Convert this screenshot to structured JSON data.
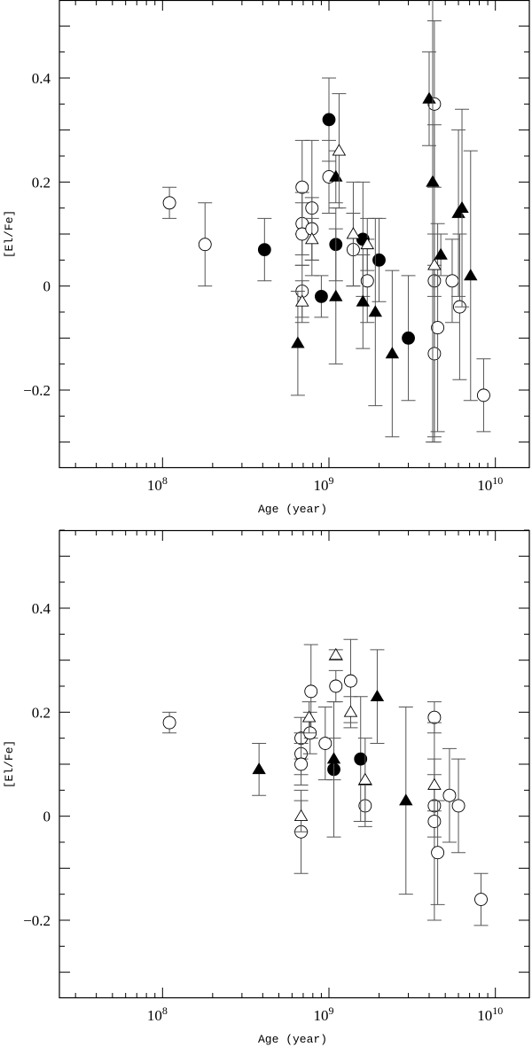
{
  "chart_data": [
    {
      "type": "scatter",
      "panel": "top",
      "xlabel": "Age (year)",
      "ylabel": "[El/Fe]",
      "xscale": "log",
      "xlim": [
        24000000.0,
        16000000000.0
      ],
      "ylim": [
        -0.35,
        0.55
      ],
      "xticks": [
        "10^8",
        "10^9",
        "10^10"
      ],
      "yticks": [
        -0.2,
        0,
        0.2,
        0.4
      ],
      "grid": false,
      "series": [
        {
          "marker": "open-circle",
          "points": [
            [
              110000000.0,
              0.16,
              0.03
            ],
            [
              180000000.0,
              0.08,
              0.08
            ],
            [
              690000000.0,
              0.19,
              0.09
            ],
            [
              690000000.0,
              0.12,
              0.06
            ],
            [
              690000000.0,
              0.1,
              0.06
            ],
            [
              690000000.0,
              -0.01,
              0.05
            ],
            [
              790000000.0,
              0.15,
              0.13
            ],
            [
              790000000.0,
              0.11,
              0.06
            ],
            [
              1000000000.0,
              0.21,
              0.07
            ],
            [
              1400000000.0,
              0.07,
              0.07
            ],
            [
              1700000000.0,
              0.01,
              0.08
            ],
            [
              4300000000.0,
              0.35,
              0.16
            ],
            [
              4300000000.0,
              0.01,
              0.3
            ],
            [
              4300000000.0,
              -0.13,
              0.17
            ],
            [
              4500000000.0,
              -0.08,
              0.2
            ],
            [
              5500000000.0,
              0.01,
              0.08
            ],
            [
              6100000000.0,
              -0.04,
              0.14
            ],
            [
              8500000000.0,
              -0.21,
              0.07
            ]
          ]
        },
        {
          "marker": "filled-circle",
          "points": [
            [
              410000000.0,
              0.07,
              0.06
            ],
            [
              900000000.0,
              -0.02,
              0.04
            ],
            [
              1000000000.0,
              0.32,
              0.08
            ],
            [
              1100000000.0,
              0.08,
              0.07
            ],
            [
              1600000000.0,
              0.09,
              0.11
            ],
            [
              2000000000.0,
              0.05,
              0.08
            ],
            [
              3000000000.0,
              -0.1,
              0.12
            ]
          ]
        },
        {
          "marker": "filled-triangle",
          "points": [
            [
              650000000.0,
              -0.11,
              0.1
            ],
            [
              1100000000.0,
              0.21,
              0.05
            ],
            [
              1100000000.0,
              -0.02,
              0.13
            ],
            [
              1600000000.0,
              -0.03,
              0.09
            ],
            [
              1900000000.0,
              -0.05,
              0.18
            ],
            [
              2400000000.0,
              -0.13,
              0.16
            ],
            [
              4000000000.0,
              0.36,
              0.09
            ],
            [
              4200000000.0,
              0.2,
              0.5
            ],
            [
              4700000000.0,
              0.06,
              0.04
            ],
            [
              6000000000.0,
              0.14,
              0.16
            ],
            [
              6300000000.0,
              0.15,
              0.19
            ],
            [
              7100000000.0,
              0.02,
              0.24
            ]
          ]
        },
        {
          "marker": "open-triangle",
          "points": [
            [
              690000000.0,
              -0.03,
              0.04
            ],
            [
              790000000.0,
              0.09,
              0.04
            ],
            [
              1150000000.0,
              0.26,
              0.11
            ],
            [
              1400000000.0,
              0.1,
              0.1
            ],
            [
              1700000000.0,
              0.08,
              0.05
            ],
            [
              4300000000.0,
              0.04,
              0.06
            ]
          ]
        }
      ]
    },
    {
      "type": "scatter",
      "panel": "bottom",
      "xlabel": "Age (year)",
      "ylabel": "[El/Fe]",
      "xscale": "log",
      "xlim": [
        24000000.0,
        16000000000.0
      ],
      "ylim": [
        -0.35,
        0.55
      ],
      "xticks": [
        "10^8",
        "10^9",
        "10^10"
      ],
      "yticks": [
        -0.2,
        0,
        0.2,
        0.4
      ],
      "grid": false,
      "series": [
        {
          "marker": "open-circle",
          "points": [
            [
              110000000.0,
              0.18,
              0.02
            ],
            [
              680000000.0,
              0.15,
              0.04
            ],
            [
              680000000.0,
              0.12,
              0.04
            ],
            [
              680000000.0,
              0.1,
              0.04
            ],
            [
              680000000.0,
              -0.03,
              0.08
            ],
            [
              780000000.0,
              0.24,
              0.09
            ],
            [
              770000000.0,
              0.16,
              0.04
            ],
            [
              950000000.0,
              0.14,
              0.07
            ],
            [
              1100000000.0,
              0.25,
              0.03
            ],
            [
              1350000000.0,
              0.26,
              0.08
            ],
            [
              1650000000.0,
              0.02,
              0.04
            ],
            [
              4300000000.0,
              0.19,
              0.03
            ],
            [
              4300000000.0,
              0.02,
              0.06
            ],
            [
              4300000000.0,
              -0.01,
              0.19
            ],
            [
              4500000000.0,
              -0.07,
              0.1
            ],
            [
              5300000000.0,
              0.04,
              0.09
            ],
            [
              6000000000.0,
              0.02,
              0.09
            ],
            [
              8200000000.0,
              -0.16,
              0.05
            ]
          ]
        },
        {
          "marker": "filled-circle",
          "points": [
            [
              1070000000.0,
              0.09,
              0.13
            ],
            [
              1550000000.0,
              0.11,
              0.12
            ]
          ]
        },
        {
          "marker": "filled-triangle",
          "points": [
            [
              380000000.0,
              0.09,
              0.05
            ],
            [
              1070000000.0,
              0.11,
              0.04
            ],
            [
              1950000000.0,
              0.23,
              0.09
            ],
            [
              2900000000.0,
              0.03,
              0.18
            ]
          ]
        },
        {
          "marker": "open-triangle",
          "points": [
            [
              680000000.0,
              0.0,
              0.03
            ],
            [
              760000000.0,
              0.19,
              0.03
            ],
            [
              1100000000.0,
              0.31,
              0.01
            ],
            [
              1350000000.0,
              0.2,
              0.03
            ],
            [
              1650000000.0,
              0.07,
              0.08
            ],
            [
              4300000000.0,
              0.06,
              0.05
            ]
          ]
        }
      ]
    }
  ]
}
